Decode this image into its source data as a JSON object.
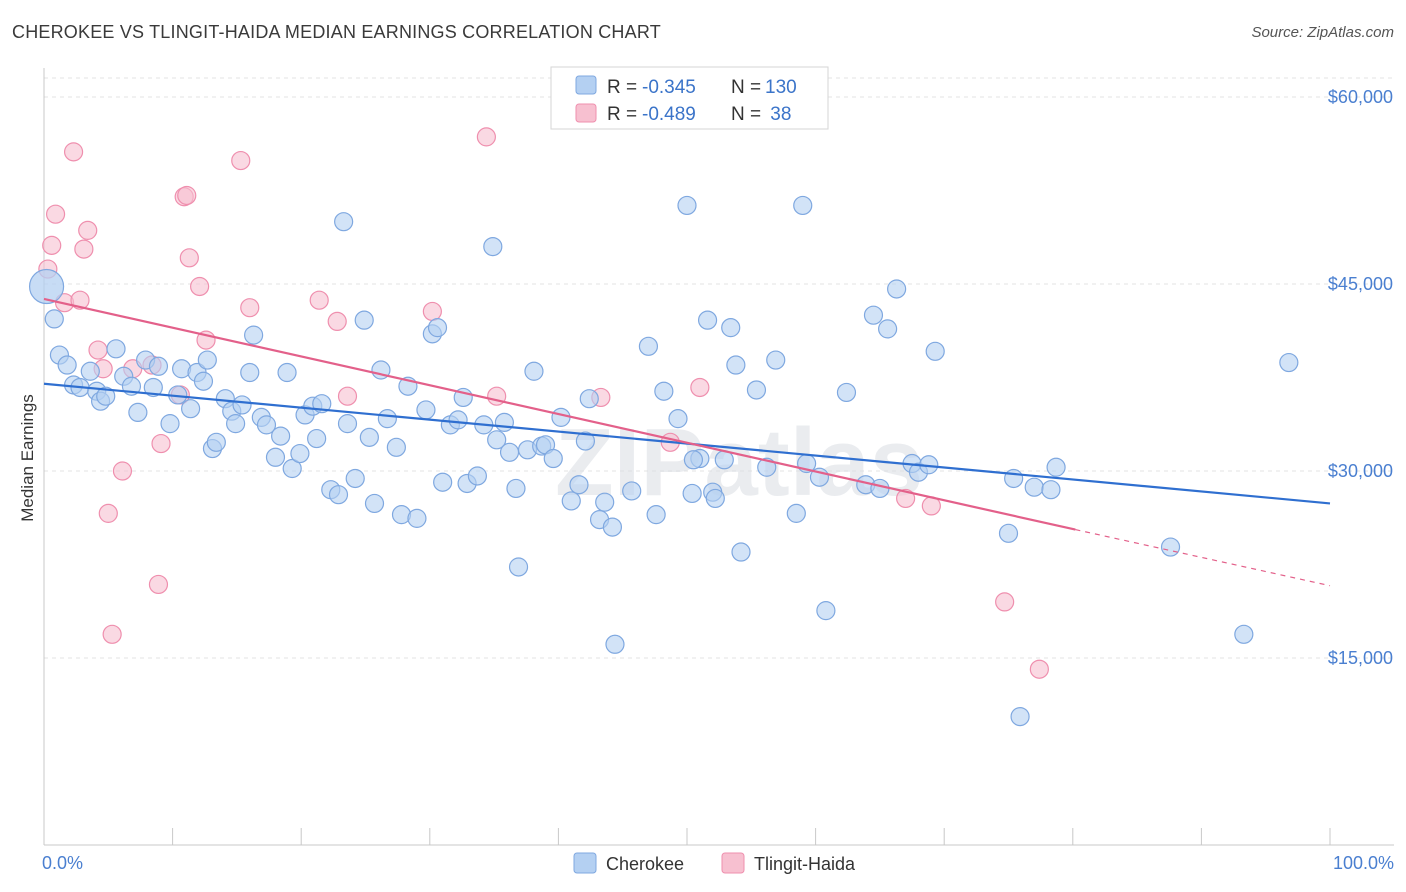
{
  "header": {
    "title": "CHEROKEE VS TLINGIT-HAIDA MEDIAN EARNINGS CORRELATION CHART",
    "source": "Source: ZipAtlas.com"
  },
  "watermark": "ZIPatlas",
  "legend_top": {
    "rows": [
      {
        "r_label": "R = ",
        "r_value": "-0.345",
        "n_label": "N = ",
        "n_value": "130",
        "color": "#aac8ef"
      },
      {
        "r_label": "R = ",
        "r_value": "-0.489",
        "n_label": "N = ",
        "n_value": " 38",
        "color": "#f6b9cb"
      }
    ]
  },
  "chart_data": {
    "type": "scatter",
    "title": "CHEROKEE VS TLINGIT-HAIDA MEDIAN EARNINGS CORRELATION CHART",
    "xlabel": "",
    "ylabel": "Median Earnings",
    "xlim": [
      0,
      100
    ],
    "ylim": [
      0,
      62000
    ],
    "x_tick_labels": [
      "0.0%",
      "100.0%"
    ],
    "y_ticks": [
      15000,
      30000,
      45000,
      60000
    ],
    "y_tick_labels": [
      "$15,000",
      "$30,000",
      "$45,000",
      "$60,000"
    ],
    "grid": true,
    "legend_placement": "top-center",
    "series": [
      {
        "name": "Cherokee",
        "color": "#7fa8e0",
        "fill": "#b4d0f2",
        "trend": {
          "x0": 0,
          "y0": 37000,
          "x1": 100,
          "y1": 27400,
          "dashed_from": null
        },
        "points": [
          [
            0.2,
            44800
          ],
          [
            0.8,
            42200
          ],
          [
            1.2,
            39300
          ],
          [
            1.8,
            38500
          ],
          [
            2.3,
            36900
          ],
          [
            2.8,
            36700
          ],
          [
            3.6,
            38000
          ],
          [
            4.1,
            36400
          ],
          [
            4.4,
            35600
          ],
          [
            4.8,
            36000
          ],
          [
            5.6,
            39800
          ],
          [
            6.2,
            37600
          ],
          [
            6.8,
            36800
          ],
          [
            7.3,
            34700
          ],
          [
            7.9,
            38900
          ],
          [
            8.5,
            36700
          ],
          [
            8.9,
            38400
          ],
          [
            9.8,
            33800
          ],
          [
            10.4,
            36100
          ],
          [
            10.7,
            38200
          ],
          [
            11.4,
            35000
          ],
          [
            11.9,
            37900
          ],
          [
            12.4,
            37200
          ],
          [
            12.7,
            38900
          ],
          [
            13.1,
            31800
          ],
          [
            13.4,
            32300
          ],
          [
            14.1,
            35800
          ],
          [
            14.6,
            34800
          ],
          [
            14.9,
            33800
          ],
          [
            15.4,
            35300
          ],
          [
            16.0,
            37900
          ],
          [
            16.3,
            40900
          ],
          [
            16.9,
            34300
          ],
          [
            17.3,
            33700
          ],
          [
            18.0,
            31100
          ],
          [
            18.4,
            32800
          ],
          [
            18.9,
            37900
          ],
          [
            19.3,
            30200
          ],
          [
            19.9,
            31400
          ],
          [
            20.3,
            34500
          ],
          [
            20.9,
            35200
          ],
          [
            21.2,
            32600
          ],
          [
            21.6,
            35400
          ],
          [
            22.3,
            28500
          ],
          [
            22.9,
            28100
          ],
          [
            23.3,
            50000
          ],
          [
            23.6,
            33800
          ],
          [
            24.2,
            29400
          ],
          [
            24.9,
            42100
          ],
          [
            25.3,
            32700
          ],
          [
            25.7,
            27400
          ],
          [
            26.2,
            38100
          ],
          [
            26.7,
            34200
          ],
          [
            27.4,
            31900
          ],
          [
            27.8,
            26500
          ],
          [
            28.3,
            36800
          ],
          [
            29.0,
            26200
          ],
          [
            29.7,
            34900
          ],
          [
            30.2,
            41000
          ],
          [
            30.6,
            41500
          ],
          [
            31.0,
            29100
          ],
          [
            31.6,
            33700
          ],
          [
            32.2,
            34100
          ],
          [
            32.6,
            35900
          ],
          [
            32.9,
            29000
          ],
          [
            33.7,
            29600
          ],
          [
            34.2,
            33700
          ],
          [
            34.9,
            48000
          ],
          [
            35.2,
            32500
          ],
          [
            35.8,
            33900
          ],
          [
            36.2,
            31500
          ],
          [
            36.7,
            28600
          ],
          [
            36.9,
            22300
          ],
          [
            37.6,
            31700
          ],
          [
            38.1,
            38000
          ],
          [
            38.7,
            32000
          ],
          [
            39.0,
            32100
          ],
          [
            39.6,
            31000
          ],
          [
            40.2,
            34300
          ],
          [
            41.0,
            27600
          ],
          [
            41.6,
            28900
          ],
          [
            42.1,
            32400
          ],
          [
            42.4,
            35800
          ],
          [
            43.2,
            26100
          ],
          [
            43.6,
            27500
          ],
          [
            44.2,
            25500
          ],
          [
            44.4,
            16100
          ],
          [
            45.7,
            28400
          ],
          [
            47.0,
            40000
          ],
          [
            47.6,
            26500
          ],
          [
            48.2,
            36400
          ],
          [
            49.3,
            34200
          ],
          [
            50.0,
            51300
          ],
          [
            50.4,
            28200
          ],
          [
            51.0,
            31000
          ],
          [
            51.6,
            42100
          ],
          [
            52.0,
            28300
          ],
          [
            52.2,
            27800
          ],
          [
            52.9,
            30900
          ],
          [
            53.4,
            41500
          ],
          [
            53.8,
            38500
          ],
          [
            54.2,
            23500
          ],
          [
            55.4,
            36500
          ],
          [
            56.2,
            30300
          ],
          [
            56.9,
            38900
          ],
          [
            58.5,
            26600
          ],
          [
            59.0,
            51300
          ],
          [
            59.3,
            30600
          ],
          [
            60.3,
            29500
          ],
          [
            60.8,
            18800
          ],
          [
            62.4,
            36300
          ],
          [
            63.9,
            28900
          ],
          [
            64.5,
            42500
          ],
          [
            65.0,
            28600
          ],
          [
            65.6,
            41400
          ],
          [
            66.3,
            44600
          ],
          [
            67.5,
            30600
          ],
          [
            68.0,
            29900
          ],
          [
            68.8,
            30500
          ],
          [
            69.3,
            39600
          ],
          [
            75.0,
            25000
          ],
          [
            75.4,
            29400
          ],
          [
            77.0,
            28700
          ],
          [
            78.3,
            28500
          ],
          [
            78.7,
            30300
          ],
          [
            87.6,
            23900
          ],
          [
            93.3,
            16900
          ],
          [
            96.8,
            38700
          ],
          [
            75.9,
            10300
          ],
          [
            50.5,
            30900
          ]
        ]
      },
      {
        "name": "Tlingit-Haida",
        "color": "#ef8fae",
        "fill": "#f7c0d0",
        "trend": {
          "x0": 0,
          "y0": 43800,
          "x1": 80.2,
          "y1": 25300,
          "dashed_to": 100,
          "dashed_y": 20800
        },
        "points": [
          [
            0.3,
            46200
          ],
          [
            0.6,
            48100
          ],
          [
            0.9,
            50600
          ],
          [
            1.6,
            43500
          ],
          [
            2.3,
            55600
          ],
          [
            2.8,
            43700
          ],
          [
            3.1,
            47800
          ],
          [
            3.4,
            49300
          ],
          [
            4.2,
            39700
          ],
          [
            4.6,
            38200
          ],
          [
            5.0,
            26600
          ],
          [
            5.3,
            16900
          ],
          [
            6.1,
            30000
          ],
          [
            6.9,
            38200
          ],
          [
            8.4,
            38500
          ],
          [
            8.9,
            20900
          ],
          [
            9.1,
            32200
          ],
          [
            10.6,
            36100
          ],
          [
            10.9,
            52000
          ],
          [
            11.1,
            52100
          ],
          [
            11.3,
            47100
          ],
          [
            12.1,
            44800
          ],
          [
            12.6,
            40500
          ],
          [
            15.3,
            54900
          ],
          [
            16.0,
            43100
          ],
          [
            21.4,
            43700
          ],
          [
            22.8,
            42000
          ],
          [
            23.6,
            36000
          ],
          [
            30.2,
            42800
          ],
          [
            34.4,
            56800
          ],
          [
            35.2,
            36000
          ],
          [
            43.3,
            35900
          ],
          [
            48.7,
            32300
          ],
          [
            51.0,
            36700
          ],
          [
            67.0,
            27800
          ],
          [
            69.0,
            27200
          ],
          [
            74.7,
            19500
          ],
          [
            77.4,
            14100
          ]
        ]
      }
    ]
  },
  "bottom_legend": {
    "items": [
      {
        "label": "Cherokee",
        "color": "#b4d0f2",
        "border": "#7fa8e0"
      },
      {
        "label": "Tlingit-Haida",
        "color": "#f7c0d0",
        "border": "#ef8fae"
      }
    ]
  }
}
